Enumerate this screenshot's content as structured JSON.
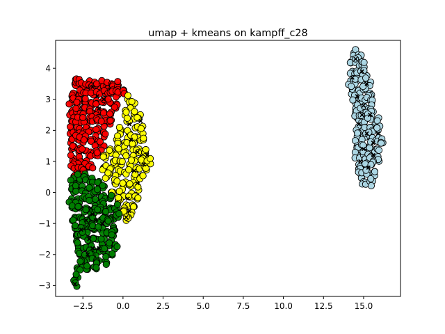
{
  "chart_data": {
    "type": "scatter",
    "title": "umap + kmeans on kampff_c28",
    "xlabel": "",
    "ylabel": "",
    "xlim": [
      -4.2,
      17.3
    ],
    "ylim": [
      -3.35,
      4.9
    ],
    "x_ticks": [
      -2.5,
      0.0,
      2.5,
      5.0,
      7.5,
      10.0,
      12.5,
      15.0
    ],
    "x_tick_labels": [
      "−2.5",
      "0.0",
      "2.5",
      "5.0",
      "7.5",
      "10.0",
      "12.5",
      "15.0"
    ],
    "y_ticks": [
      -3,
      -2,
      -1,
      0,
      1,
      2,
      3,
      4
    ],
    "y_tick_labels": [
      "−3",
      "−2",
      "−1",
      "0",
      "1",
      "2",
      "3",
      "4"
    ],
    "grid": false,
    "legend": "none",
    "series": [
      {
        "color": "#ff0000",
        "marker": "circle",
        "description_region": "upper-left cluster",
        "points": [
          [
            -3.0,
            3.5
          ],
          [
            -2.8,
            3.55
          ],
          [
            -2.5,
            3.45
          ],
          [
            -2.2,
            3.5
          ],
          [
            -1.9,
            3.45
          ],
          [
            -1.6,
            3.5
          ],
          [
            -1.3,
            3.5
          ],
          [
            -1.0,
            3.45
          ],
          [
            -0.7,
            3.5
          ],
          [
            -0.3,
            3.45
          ],
          [
            -3.1,
            3.2
          ],
          [
            -2.7,
            3.2
          ],
          [
            -2.3,
            3.2
          ],
          [
            -1.9,
            3.2
          ],
          [
            -1.5,
            3.2
          ],
          [
            -1.1,
            3.2
          ],
          [
            -0.7,
            3.2
          ],
          [
            -0.3,
            3.15
          ],
          [
            0.1,
            3.2
          ],
          [
            -3.2,
            2.9
          ],
          [
            -2.8,
            2.9
          ],
          [
            -2.4,
            2.9
          ],
          [
            -2.0,
            2.9
          ],
          [
            -1.6,
            2.9
          ],
          [
            -1.2,
            2.9
          ],
          [
            -0.8,
            2.9
          ],
          [
            -0.4,
            2.85
          ],
          [
            -3.2,
            2.6
          ],
          [
            -2.8,
            2.6
          ],
          [
            -2.4,
            2.6
          ],
          [
            -2.0,
            2.6
          ],
          [
            -1.6,
            2.6
          ],
          [
            -1.2,
            2.6
          ],
          [
            -0.8,
            2.55
          ],
          [
            -3.2,
            2.3
          ],
          [
            -2.8,
            2.3
          ],
          [
            -2.4,
            2.3
          ],
          [
            -2.0,
            2.3
          ],
          [
            -1.6,
            2.3
          ],
          [
            -1.2,
            2.25
          ],
          [
            -0.8,
            2.2
          ],
          [
            -3.2,
            2.0
          ],
          [
            -2.8,
            2.0
          ],
          [
            -2.4,
            2.0
          ],
          [
            -2.0,
            2.0
          ],
          [
            -1.6,
            1.95
          ],
          [
            -1.2,
            1.9
          ],
          [
            -3.2,
            1.7
          ],
          [
            -2.8,
            1.7
          ],
          [
            -2.4,
            1.7
          ],
          [
            -2.0,
            1.65
          ],
          [
            -1.6,
            1.6
          ],
          [
            -1.3,
            1.5
          ],
          [
            -3.2,
            1.4
          ],
          [
            -2.8,
            1.4
          ],
          [
            -2.4,
            1.35
          ],
          [
            -2.0,
            1.3
          ],
          [
            -1.7,
            1.2
          ],
          [
            -3.1,
            1.1
          ],
          [
            -2.7,
            1.05
          ],
          [
            -2.3,
            1.0
          ],
          [
            -2.0,
            0.9
          ],
          [
            -3.1,
            0.8
          ],
          [
            -2.7,
            0.75
          ],
          [
            -2.4,
            0.65
          ],
          [
            -3.0,
            0.55
          ]
        ]
      },
      {
        "color": "#ffff00",
        "marker": "circle",
        "description_region": "right side of left cluster",
        "points": [
          [
            0.3,
            3.0
          ],
          [
            0.6,
            2.8
          ],
          [
            0.2,
            2.6
          ],
          [
            0.7,
            2.5
          ],
          [
            1.0,
            2.4
          ],
          [
            0.3,
            2.3
          ],
          [
            0.8,
            2.1
          ],
          [
            1.1,
            2.0
          ],
          [
            -0.1,
            2.0
          ],
          [
            0.4,
            1.9
          ],
          [
            0.8,
            1.8
          ],
          [
            1.2,
            1.7
          ],
          [
            -0.4,
            1.7
          ],
          [
            0.1,
            1.6
          ],
          [
            0.6,
            1.5
          ],
          [
            1.0,
            1.4
          ],
          [
            1.4,
            1.3
          ],
          [
            -0.8,
            1.4
          ],
          [
            -0.3,
            1.3
          ],
          [
            0.2,
            1.2
          ],
          [
            0.7,
            1.1
          ],
          [
            1.2,
            1.1
          ],
          [
            1.6,
            1.0
          ],
          [
            -1.1,
            1.1
          ],
          [
            -0.6,
            1.0
          ],
          [
            -0.1,
            0.9
          ],
          [
            0.4,
            0.9
          ],
          [
            0.9,
            0.8
          ],
          [
            1.4,
            0.8
          ],
          [
            -1.2,
            0.8
          ],
          [
            -0.8,
            0.7
          ],
          [
            -0.3,
            0.6
          ],
          [
            0.2,
            0.6
          ],
          [
            0.7,
            0.5
          ],
          [
            1.1,
            0.5
          ],
          [
            -1.0,
            0.5
          ],
          [
            -0.5,
            0.3
          ],
          [
            0.0,
            0.3
          ],
          [
            0.5,
            0.2
          ],
          [
            0.9,
            0.2
          ],
          [
            -0.6,
            0.0
          ],
          [
            -0.1,
            0.0
          ],
          [
            0.4,
            -0.1
          ],
          [
            0.8,
            -0.1
          ],
          [
            -0.3,
            -0.3
          ],
          [
            0.2,
            -0.4
          ],
          [
            0.6,
            -0.4
          ],
          [
            0.0,
            -0.6
          ],
          [
            0.4,
            -0.7
          ],
          [
            0.2,
            -0.9
          ]
        ]
      },
      {
        "color": "#008000",
        "marker": "circle",
        "description_region": "lower-left cluster",
        "points": [
          [
            -3.1,
            0.4
          ],
          [
            -2.7,
            0.5
          ],
          [
            -2.3,
            0.5
          ],
          [
            -1.9,
            0.4
          ],
          [
            -1.5,
            0.3
          ],
          [
            -1.2,
            0.2
          ],
          [
            -3.2,
            0.1
          ],
          [
            -2.8,
            0.1
          ],
          [
            -2.4,
            0.1
          ],
          [
            -2.0,
            0.1
          ],
          [
            -1.6,
            0.0
          ],
          [
            -1.2,
            -0.1
          ],
          [
            -0.8,
            -0.2
          ],
          [
            -3.2,
            -0.2
          ],
          [
            -2.8,
            -0.2
          ],
          [
            -2.4,
            -0.2
          ],
          [
            -2.0,
            -0.2
          ],
          [
            -1.6,
            -0.3
          ],
          [
            -1.2,
            -0.4
          ],
          [
            -0.8,
            -0.5
          ],
          [
            -0.4,
            -0.5
          ],
          [
            -3.1,
            -0.5
          ],
          [
            -2.7,
            -0.5
          ],
          [
            -2.3,
            -0.5
          ],
          [
            -1.9,
            -0.6
          ],
          [
            -1.5,
            -0.6
          ],
          [
            -1.1,
            -0.7
          ],
          [
            -0.7,
            -0.8
          ],
          [
            -0.3,
            -0.8
          ],
          [
            -3.0,
            -0.8
          ],
          [
            -2.6,
            -0.8
          ],
          [
            -2.2,
            -0.9
          ],
          [
            -1.8,
            -0.9
          ],
          [
            -1.4,
            -0.9
          ],
          [
            -1.0,
            -1.0
          ],
          [
            -0.6,
            -1.1
          ],
          [
            -3.0,
            -1.1
          ],
          [
            -2.6,
            -1.1
          ],
          [
            -2.2,
            -1.2
          ],
          [
            -1.8,
            -1.2
          ],
          [
            -1.4,
            -1.2
          ],
          [
            -1.0,
            -1.3
          ],
          [
            -0.6,
            -1.4
          ],
          [
            -2.9,
            -1.4
          ],
          [
            -2.5,
            -1.4
          ],
          [
            -2.1,
            -1.5
          ],
          [
            -1.7,
            -1.5
          ],
          [
            -1.3,
            -1.6
          ],
          [
            -0.9,
            -1.7
          ],
          [
            -0.5,
            -1.7
          ],
          [
            -2.8,
            -1.7
          ],
          [
            -2.4,
            -1.8
          ],
          [
            -2.0,
            -1.8
          ],
          [
            -1.6,
            -1.9
          ],
          [
            -1.2,
            -1.9
          ],
          [
            -0.8,
            -2.0
          ],
          [
            -2.7,
            -2.0
          ],
          [
            -2.3,
            -2.1
          ],
          [
            -1.9,
            -2.1
          ],
          [
            -1.5,
            -2.2
          ],
          [
            -1.1,
            -2.2
          ],
          [
            -2.6,
            -2.3
          ],
          [
            -2.2,
            -2.4
          ],
          [
            -1.8,
            -2.4
          ],
          [
            -2.8,
            -2.5
          ],
          [
            -2.9,
            -2.7
          ],
          [
            -3.0,
            -2.9
          ]
        ]
      },
      {
        "color": "#add8e6",
        "marker": "circle",
        "description_region": "right cluster",
        "points": [
          [
            14.4,
            4.5
          ],
          [
            14.7,
            4.4
          ],
          [
            14.2,
            4.2
          ],
          [
            14.6,
            4.2
          ],
          [
            14.9,
            4.1
          ],
          [
            14.3,
            3.9
          ],
          [
            14.7,
            3.9
          ],
          [
            15.1,
            3.8
          ],
          [
            14.2,
            3.6
          ],
          [
            14.6,
            3.6
          ],
          [
            15.0,
            3.6
          ],
          [
            15.3,
            3.5
          ],
          [
            14.3,
            3.3
          ],
          [
            14.7,
            3.3
          ],
          [
            15.1,
            3.3
          ],
          [
            15.4,
            3.2
          ],
          [
            14.4,
            3.0
          ],
          [
            14.8,
            3.0
          ],
          [
            15.2,
            3.0
          ],
          [
            15.5,
            2.9
          ],
          [
            14.5,
            2.7
          ],
          [
            14.9,
            2.7
          ],
          [
            15.3,
            2.7
          ],
          [
            15.6,
            2.6
          ],
          [
            14.6,
            2.4
          ],
          [
            15.0,
            2.4
          ],
          [
            15.4,
            2.4
          ],
          [
            15.8,
            2.3
          ],
          [
            14.7,
            2.1
          ],
          [
            15.1,
            2.1
          ],
          [
            15.5,
            2.1
          ],
          [
            15.9,
            2.0
          ],
          [
            14.6,
            1.8
          ],
          [
            15.0,
            1.8
          ],
          [
            15.4,
            1.8
          ],
          [
            15.8,
            1.7
          ],
          [
            16.2,
            1.6
          ],
          [
            14.6,
            1.5
          ],
          [
            15.0,
            1.5
          ],
          [
            15.4,
            1.5
          ],
          [
            15.8,
            1.4
          ],
          [
            14.6,
            1.2
          ],
          [
            15.0,
            1.2
          ],
          [
            15.4,
            1.2
          ],
          [
            15.8,
            1.1
          ],
          [
            14.7,
            0.9
          ],
          [
            15.1,
            0.9
          ],
          [
            15.5,
            0.9
          ],
          [
            14.8,
            0.6
          ],
          [
            15.2,
            0.6
          ],
          [
            15.6,
            0.6
          ],
          [
            15.0,
            0.35
          ],
          [
            15.4,
            0.35
          ]
        ]
      }
    ],
    "cross_markers": {
      "color": "#000000",
      "marker": "x",
      "points": [
        [
          -1.9,
          3.4
        ],
        [
          -1.2,
          3.0
        ],
        [
          -1.5,
          2.7
        ],
        [
          -1.6,
          3.1
        ],
        [
          0.4,
          2.2
        ],
        [
          0.9,
          1.3
        ],
        [
          1.5,
          1.2
        ],
        [
          1.3,
          0.9
        ],
        [
          0.7,
          0.7
        ],
        [
          0.9,
          0.3
        ],
        [
          0.3,
          -0.2
        ],
        [
          0.4,
          -0.6
        ],
        [
          0.2,
          -0.8
        ],
        [
          1.1,
          2.3
        ],
        [
          0.5,
          1.7
        ],
        [
          -2.0,
          -0.5
        ],
        [
          -1.9,
          -0.7
        ],
        [
          -1.7,
          -0.9
        ],
        [
          -1.3,
          -1.0
        ],
        [
          -2.1,
          -1.5
        ],
        [
          -1.9,
          -1.8
        ],
        [
          -2.2,
          -2.0
        ],
        [
          -2.6,
          -1.2
        ],
        [
          -2.3,
          -0.9
        ],
        [
          -1.5,
          -1.8
        ],
        [
          -3.0,
          -2.95
        ],
        [
          14.5,
          4.3
        ],
        [
          14.9,
          3.9
        ],
        [
          14.3,
          3.7
        ],
        [
          15.2,
          3.5
        ],
        [
          14.6,
          3.1
        ],
        [
          15.0,
          2.8
        ],
        [
          15.4,
          2.5
        ],
        [
          14.7,
          2.2
        ],
        [
          15.2,
          1.9
        ],
        [
          15.6,
          1.6
        ],
        [
          15.0,
          1.4
        ],
        [
          14.8,
          1.0
        ],
        [
          15.3,
          0.8
        ],
        [
          15.6,
          1.2
        ],
        [
          15.9,
          1.9
        ],
        [
          14.9,
          2.5
        ]
      ]
    }
  }
}
